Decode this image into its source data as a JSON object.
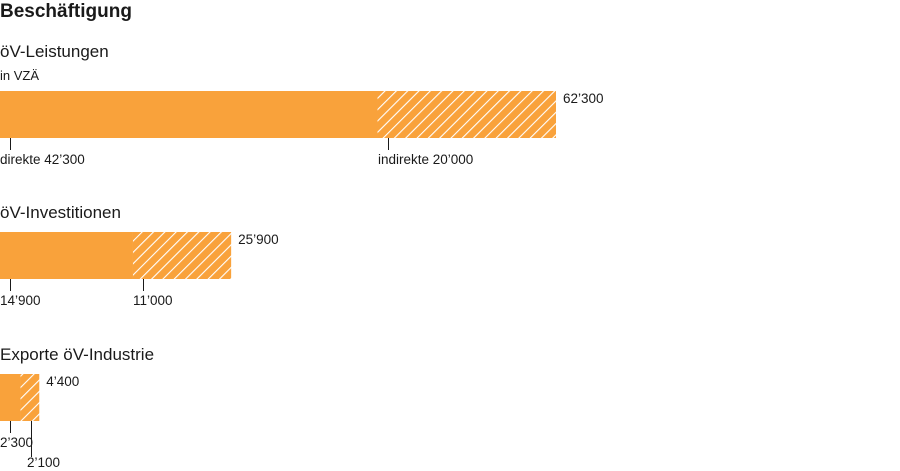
{
  "chart_data": {
    "type": "bar",
    "title": "Beschäftigung",
    "unit": "in VZÄ",
    "colors": {
      "bar": "#f9a23b",
      "hatch_stroke": "#ffffff",
      "tick": "#1a1a1a"
    },
    "xlim": [
      0,
      62300
    ],
    "series_order": [
      "direkte",
      "indirekte"
    ],
    "groups": [
      {
        "label": "öV-Leistungen",
        "total": 62300,
        "total_label": "62’300",
        "segments": [
          {
            "name": "direkte",
            "value": 42300,
            "label": "direkte 42’300",
            "style": "solid"
          },
          {
            "name": "indirekte",
            "value": 20000,
            "label": "indirekte 20’000",
            "style": "hatched"
          }
        ]
      },
      {
        "label": "öV-Investitionen",
        "total": 25900,
        "total_label": "25’900",
        "segments": [
          {
            "name": "direkte",
            "value": 14900,
            "label": "14’900",
            "style": "solid"
          },
          {
            "name": "indirekte",
            "value": 11000,
            "label": "11’000",
            "style": "hatched"
          }
        ]
      },
      {
        "label": "Exporte öV-Industrie",
        "total": 4400,
        "total_label": "4’400",
        "segments": [
          {
            "name": "direkte",
            "value": 2300,
            "label": "2’300",
            "style": "solid"
          },
          {
            "name": "indirekte",
            "value": 2100,
            "label": "2’100",
            "style": "hatched"
          }
        ]
      }
    ]
  }
}
